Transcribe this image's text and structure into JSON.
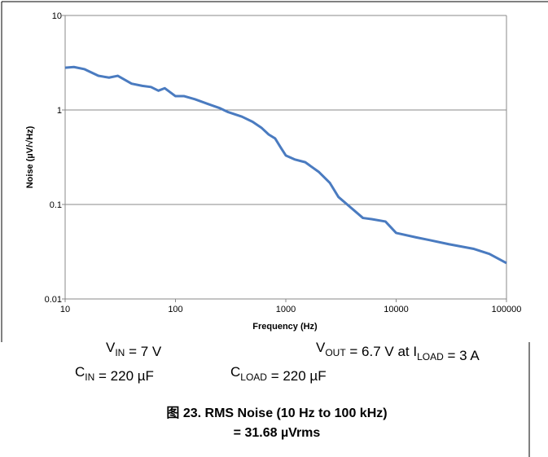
{
  "chart_data": {
    "type": "line",
    "xlabel": "Frequency (Hz)",
    "ylabel": "Noise (µV/√Hz)",
    "log_x": true,
    "log_y": true,
    "grid": true,
    "xlim": [
      10,
      100000
    ],
    "ylim": [
      0.01,
      10
    ],
    "xticks": [
      10,
      100,
      1000,
      10000,
      100000
    ],
    "yticks": [
      0.01,
      0.1,
      1,
      10
    ],
    "x": [
      10,
      12,
      15,
      20,
      25,
      30,
      40,
      50,
      60,
      70,
      80,
      100,
      120,
      150,
      200,
      250,
      300,
      400,
      500,
      600,
      700,
      800,
      900,
      1000,
      1200,
      1500,
      2000,
      2500,
      3000,
      4000,
      5000,
      6000,
      8000,
      10000,
      15000,
      20000,
      30000,
      50000,
      70000,
      100000
    ],
    "series": [
      {
        "name": "Noise",
        "color": "#4a7bc0",
        "values": [
          2.8,
          2.85,
          2.7,
          2.3,
          2.2,
          2.3,
          1.9,
          1.8,
          1.75,
          1.6,
          1.7,
          1.4,
          1.4,
          1.3,
          1.15,
          1.05,
          0.95,
          0.85,
          0.75,
          0.65,
          0.55,
          0.5,
          0.4,
          0.33,
          0.3,
          0.28,
          0.22,
          0.17,
          0.12,
          0.09,
          0.072,
          0.07,
          0.066,
          0.05,
          0.045,
          0.042,
          0.038,
          0.034,
          0.03,
          0.024
        ]
      }
    ],
    "annotations": [
      [
        {
          "text": "V"
        },
        {
          "sub": "IN"
        },
        {
          "text": " = 7 V"
        }
      ],
      [
        {
          "text": "V"
        },
        {
          "sub": "OUT"
        },
        {
          "text": " = 6.7 V at I"
        },
        {
          "sub": "LOAD"
        },
        {
          "text": " = 3 A"
        }
      ],
      [
        {
          "text": "C"
        },
        {
          "sub": "IN"
        },
        {
          "text": " = 220 µF"
        }
      ],
      [
        {
          "text": "C"
        },
        {
          "sub": "LOAD"
        },
        {
          "text": " = 220 µF"
        }
      ]
    ],
    "caption": [
      "图 23. RMS Noise (10 Hz to 100 kHz)",
      "= 31.68 µVrms"
    ]
  }
}
